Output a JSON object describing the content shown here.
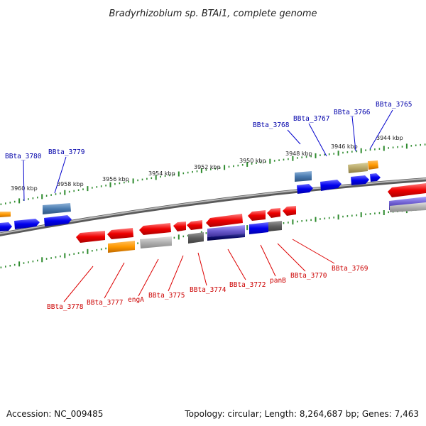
{
  "title": "Bradyrhizobium sp. BTAi1, complete genome",
  "footer": {
    "accession": "Accession: NC_009485",
    "summary": "Topology: circular; Length: 8,264,687 bp; Genes: 7,463"
  },
  "kbp_labels": [
    "3960 kbp",
    "3958 kbp",
    "3956 kbp",
    "3954 kbp",
    "3952 kbp",
    "3950 kbp",
    "3948 kbp",
    "3946 kbp",
    "3944 kbp"
  ],
  "top_gene_labels": [
    "BBta_3780",
    "BBta_3779",
    "BBta_3768",
    "BBta_3767",
    "BBta_3766",
    "BBta_3765"
  ],
  "bottom_gene_labels": [
    "BBta_3778",
    "BBta_3777",
    "engA",
    "BBta_3775",
    "BBta_3774",
    "BBta_3772",
    "panB",
    "BBta_3770",
    "BBta_3769"
  ],
  "colors": {
    "backbone": "#808080",
    "tick": "#2e8b2e",
    "forward_gene": "#0000ee",
    "reverse_gene": "#ee0000",
    "top_label": "#0000aa",
    "bottom_label": "#cc0000"
  }
}
